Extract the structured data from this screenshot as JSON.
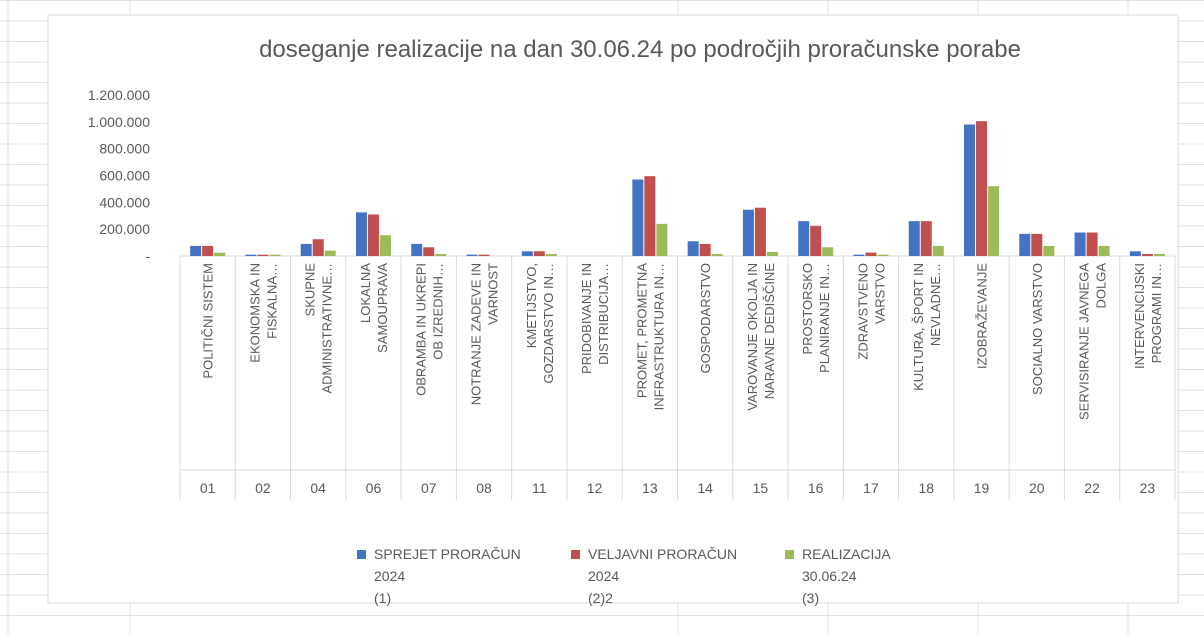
{
  "chart_data": {
    "type": "bar",
    "title": "doseganje realizacije na dan 30.06.24 po področjih proračunske porabe",
    "categories": [
      "01",
      "02",
      "04",
      "06",
      "07",
      "08",
      "11",
      "12",
      "13",
      "14",
      "15",
      "16",
      "17",
      "18",
      "19",
      "20",
      "22",
      "23"
    ],
    "category_names": [
      [
        "POLITIČNI SISTEM"
      ],
      [
        "EKONOMSKA IN",
        "FISKALNA…"
      ],
      [
        "SKUPNE",
        "ADMINISTRATIVNE…"
      ],
      [
        "LOKALNA",
        "SAMOUPRAVA"
      ],
      [
        "OBRAMBA IN UKREPI",
        "OB IZREDNIH…"
      ],
      [
        "NOTRANJE ZADEVE IN",
        "VARNOST"
      ],
      [
        "KMETIJSTVO,",
        "GOZDARSTVO IN…"
      ],
      [
        "PRIDOBIVANJE IN",
        "DISTRIBUCIJA…"
      ],
      [
        "PROMET, PROMETNA",
        "INFRASTRUKTURA IN…"
      ],
      [
        "GOSPODARSTVO"
      ],
      [
        "VAROVANJE OKOLJA IN",
        "NARAVNE DEDIŠČINE"
      ],
      [
        "PROSTORSKO",
        "PLANIRANJE IN…"
      ],
      [
        "ZDRAVSTVENO",
        "VARSTVO"
      ],
      [
        "KULTURA, ŠPORT IN",
        "NEVLADNE…"
      ],
      [
        "IZOBRAŽEVANJE"
      ],
      [
        "SOCIALNO VARSTVO"
      ],
      [
        "SERVISIRANJE JAVNEGA",
        "DOLGA"
      ],
      [
        "INTERVENCIJSKI",
        "PROGRAMI IN…"
      ]
    ],
    "series": [
      {
        "name": "SPREJET PRORAČUN\n2024\n(1)",
        "color": "#4472c4",
        "values": [
          75000,
          10000,
          90000,
          325000,
          90000,
          10000,
          35000,
          0,
          570000,
          110000,
          345000,
          260000,
          10000,
          260000,
          980000,
          165000,
          175000,
          35000
        ]
      },
      {
        "name": "VELJAVNI PRORAČUN\n2024\n(2)2",
        "color": "#c0504d",
        "values": [
          75000,
          10000,
          125000,
          310000,
          65000,
          10000,
          35000,
          0,
          595000,
          90000,
          360000,
          225000,
          25000,
          260000,
          1005000,
          165000,
          175000,
          15000
        ]
      },
      {
        "name": "REALIZACIJA\n30.06.24\n(3)",
        "color": "#9bbb59",
        "values": [
          25000,
          10000,
          40000,
          155000,
          15000,
          0,
          15000,
          0,
          240000,
          15000,
          30000,
          65000,
          10000,
          75000,
          520000,
          75000,
          75000,
          15000
        ]
      }
    ],
    "ylim": [
      0,
      1200000
    ],
    "yticks": [
      {
        "value": 0,
        "label": "-"
      },
      {
        "value": 200000,
        "label": "200.000"
      },
      {
        "value": 400000,
        "label": "400.000"
      },
      {
        "value": 600000,
        "label": "600.000"
      },
      {
        "value": 800000,
        "label": "800.000"
      },
      {
        "value": 1000000,
        "label": "1.000.000"
      },
      {
        "value": 1200000,
        "label": "1.200.000"
      }
    ],
    "grid": false
  }
}
